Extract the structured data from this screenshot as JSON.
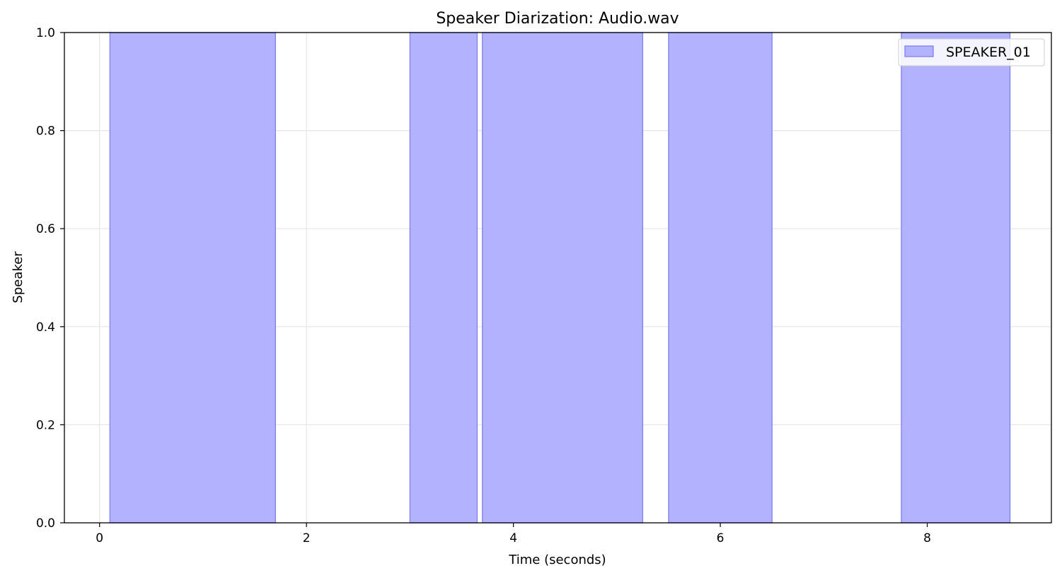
{
  "chart_data": {
    "type": "bar",
    "title": "Speaker Diarization: Audio.wav",
    "xlabel": "Time (seconds)",
    "ylabel": "Speaker",
    "xlim": [
      -0.34,
      9.2
    ],
    "ylim": [
      0,
      1
    ],
    "x_ticks": [
      0,
      2,
      4,
      6,
      8
    ],
    "x_tick_labels": [
      "0",
      "2",
      "4",
      "6",
      "8"
    ],
    "y_ticks": [
      0,
      0.2,
      0.4,
      0.6,
      0.8,
      1.0
    ],
    "y_tick_labels": [
      "0.0",
      "0.2",
      "0.4",
      "0.6",
      "0.8",
      "1.0"
    ],
    "grid": true,
    "legend_position": "top-right",
    "series": [
      {
        "name": "SPEAKER_01",
        "color": "#b2b2fe",
        "edge_color": "#7f7ff0",
        "segments": [
          {
            "start": 0.1,
            "end": 1.7
          },
          {
            "start": 3.0,
            "end": 3.65
          },
          {
            "start": 3.7,
            "end": 5.25
          },
          {
            "start": 5.5,
            "end": 6.5
          },
          {
            "start": 7.75,
            "end": 8.8
          }
        ]
      }
    ]
  }
}
